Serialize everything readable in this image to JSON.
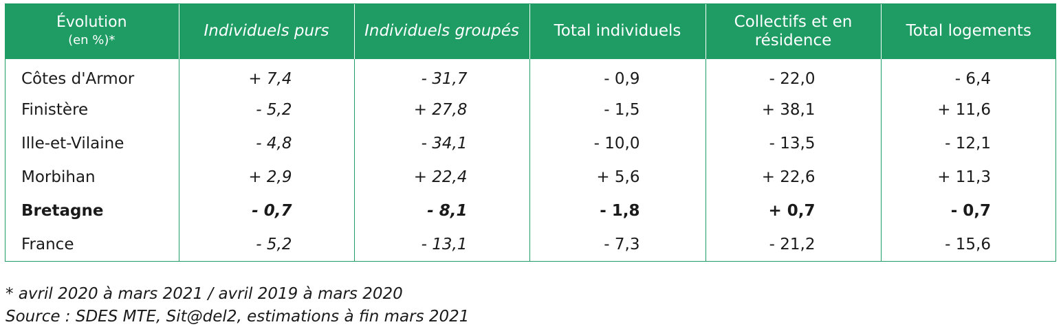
{
  "header": {
    "col0_line1": "Évolution",
    "col0_line2": "(en %)*",
    "col1": "Individuels purs",
    "col2": "Individuels groupés",
    "col3": "Total individuels",
    "col4": "Collectifs et en résidence",
    "col5": "Total logements"
  },
  "rows": [
    {
      "label": "Côtes d'Armor",
      "v": [
        "+ 7,4",
        "- 31,7",
        "- 0,9",
        "- 22,0",
        "- 6,4"
      ]
    },
    {
      "label": "Finistère",
      "v": [
        "- 5,2",
        "+ 27,8",
        "- 1,5",
        "+ 38,1",
        "+ 11,6"
      ]
    },
    {
      "label": "Ille-et-Vilaine",
      "v": [
        "- 4,8",
        "- 34,1",
        "- 10,0",
        "- 13,5",
        "- 12,1"
      ]
    },
    {
      "label": "Morbihan",
      "v": [
        "+ 2,9",
        "+ 22,4",
        "+ 5,6",
        "+ 22,6",
        "+ 11,3"
      ]
    },
    {
      "label": "Bretagne",
      "v": [
        "- 0,7",
        "- 8,1",
        "- 1,8",
        "+ 0,7",
        "- 0,7"
      ]
    },
    {
      "label": "France",
      "v": [
        "- 5,2",
        "- 13,1",
        "- 7,3",
        "- 21,2",
        "- 15,6"
      ]
    }
  ],
  "notes": {
    "period": "* avril 2020 à mars 2021 / avril 2019 à mars 2020",
    "source": "Source : SDES MTE, Sit@del2, estimations à fin mars 2021"
  },
  "colors": {
    "header_bg": "#1e9c64",
    "header_text": "#ffffff",
    "border": "#1e9c64"
  }
}
